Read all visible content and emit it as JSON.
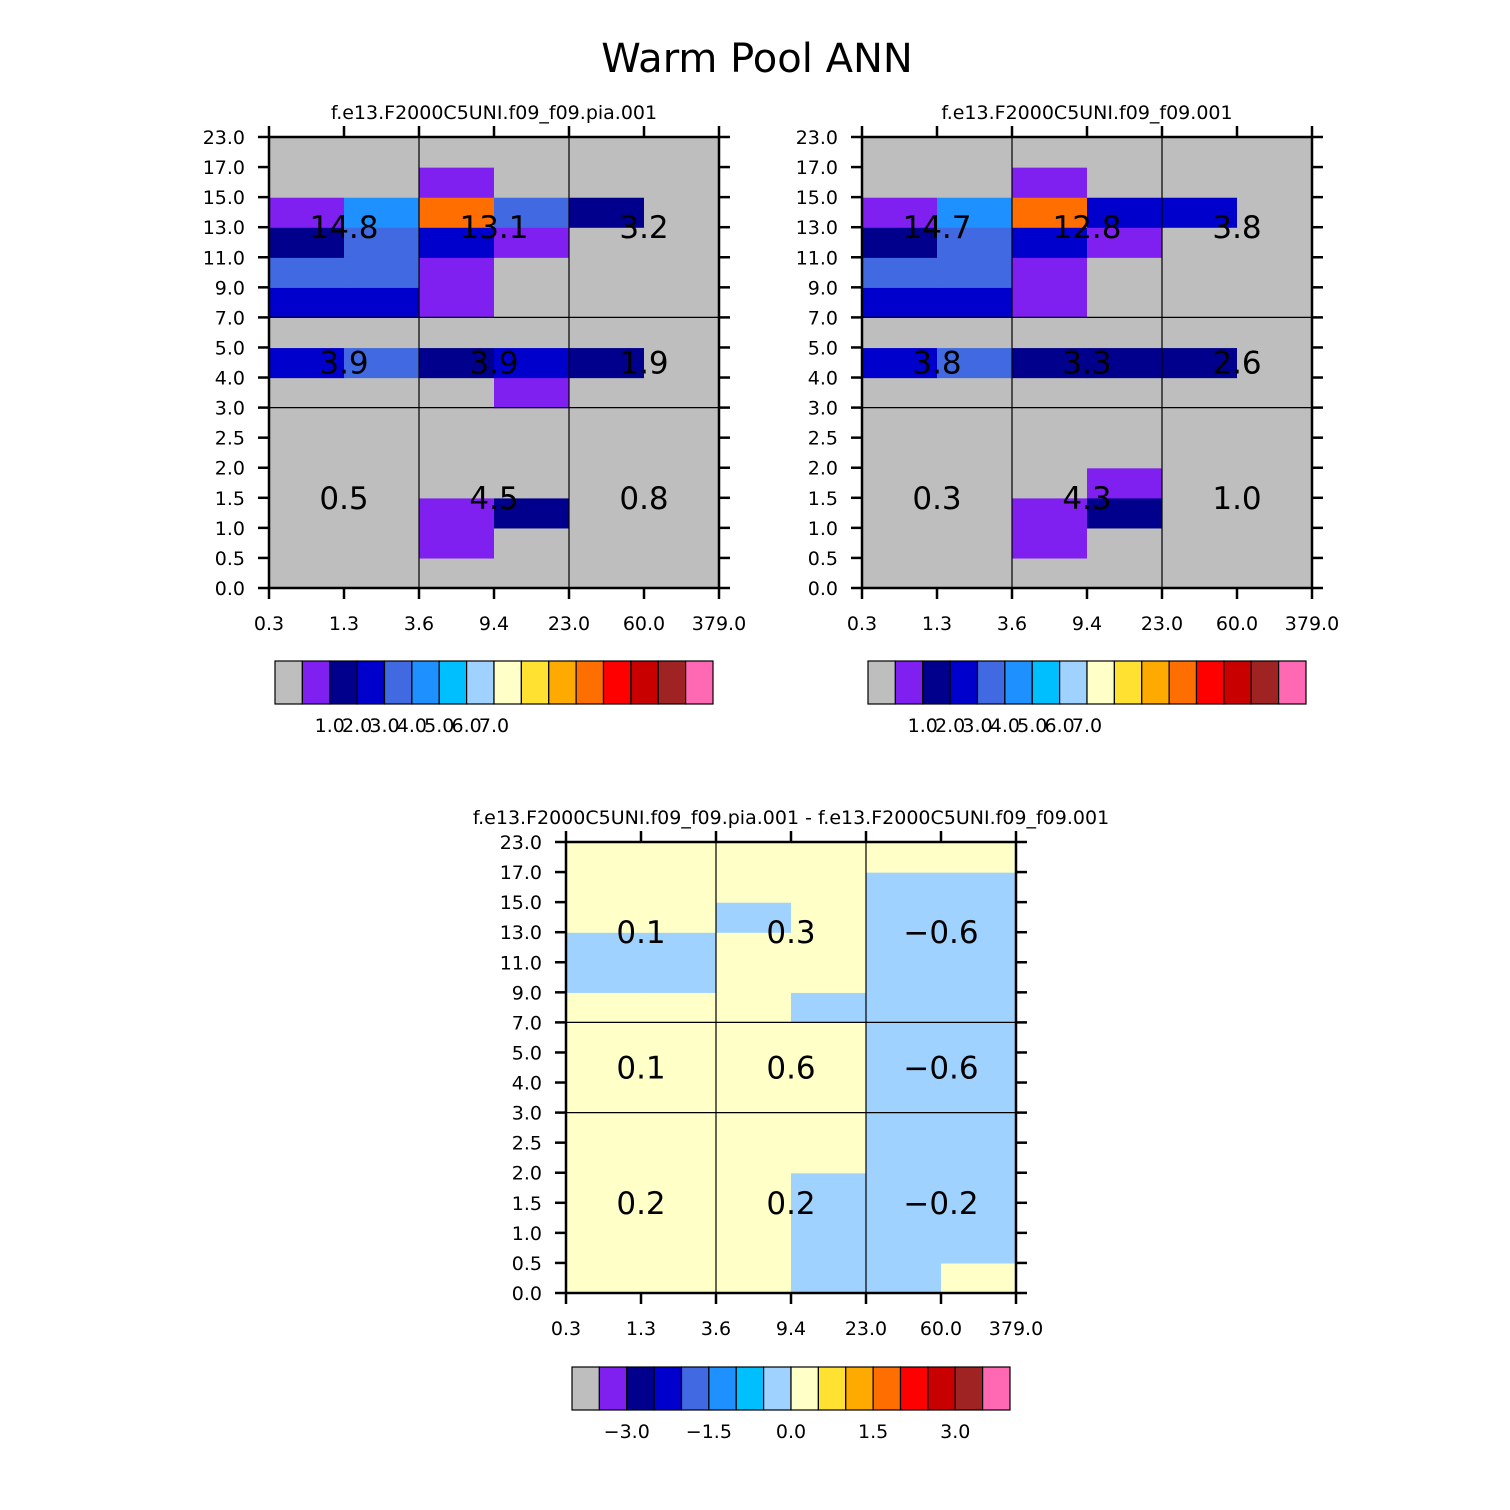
{
  "title": "Warm Pool ANN",
  "x_ticks": [
    "0.3",
    "1.3",
    "3.6",
    "9.4",
    "23.0",
    "60.0",
    "379.0"
  ],
  "y_ticks": [
    "0.0",
    "0.5",
    "1.0",
    "1.5",
    "2.0",
    "2.5",
    "3.0",
    "4.0",
    "5.0",
    "7.0",
    "9.0",
    "11.0",
    "13.0",
    "15.0",
    "17.0",
    "23.0"
  ],
  "colors": {
    "missing": "#bebebe",
    "box_fill_diff": "#ffffc8",
    "palette": [
      "#bebebe",
      "#8020f0",
      "#00008c",
      "#0000cd",
      "#4169e1",
      "#1e90ff",
      "#00bfff",
      "#a0d2ff",
      "#ffffc8",
      "#ffe132",
      "#ffaa00",
      "#ff6e00",
      "#ff0000",
      "#c80000",
      "#a02323",
      "#ff69b4"
    ]
  },
  "chart_data": [
    {
      "type": "heatmap",
      "title": "f.e13.F2000C5UNI.f09_f09.pia.001",
      "x_ticks": [
        "0.3",
        "1.3",
        "3.6",
        "9.4",
        "23.0",
        "60.0",
        "379.0"
      ],
      "y_ticks": [
        "0.0",
        "0.5",
        "1.0",
        "1.5",
        "2.0",
        "2.5",
        "3.0",
        "4.0",
        "5.0",
        "7.0",
        "9.0",
        "11.0",
        "13.0",
        "15.0",
        "17.0",
        "23.0"
      ],
      "cell_color_index": [
        [
          0,
          0,
          0,
          0,
          0,
          0
        ],
        [
          0,
          0,
          1,
          0,
          0,
          0
        ],
        [
          0,
          0,
          1,
          2,
          0,
          0
        ],
        [
          0,
          0,
          0,
          0,
          0,
          0
        ],
        [
          0,
          0,
          0,
          0,
          0,
          0
        ],
        [
          0,
          0,
          0,
          0,
          0,
          0
        ],
        [
          0,
          0,
          0,
          1,
          0,
          0
        ],
        [
          3,
          4,
          2,
          3,
          2,
          0
        ],
        [
          0,
          0,
          0,
          0,
          0,
          0
        ],
        [
          3,
          3,
          1,
          0,
          0,
          0
        ],
        [
          4,
          4,
          1,
          0,
          0,
          0
        ],
        [
          2,
          4,
          3,
          1,
          0,
          0
        ],
        [
          1,
          5,
          11,
          4,
          2,
          0
        ],
        [
          0,
          0,
          1,
          0,
          0,
          0
        ],
        [
          0,
          0,
          0,
          0,
          0,
          0
        ]
      ],
      "box_values": [
        [
          "0.5",
          "4.5",
          "0.8"
        ],
        [
          "3.9",
          "3.9",
          "1.9"
        ],
        [
          "14.8",
          "13.1",
          "3.2"
        ]
      ],
      "colorbar_labels": [
        "1.0",
        "2.0",
        "3.0",
        "4.0",
        "5.0",
        "6.0",
        "7.0"
      ]
    },
    {
      "type": "heatmap",
      "title": "f.e13.F2000C5UNI.f09_f09.001",
      "x_ticks": [
        "0.3",
        "1.3",
        "3.6",
        "9.4",
        "23.0",
        "60.0",
        "379.0"
      ],
      "y_ticks": [
        "0.0",
        "0.5",
        "1.0",
        "1.5",
        "2.0",
        "2.5",
        "3.0",
        "4.0",
        "5.0",
        "7.0",
        "9.0",
        "11.0",
        "13.0",
        "15.0",
        "17.0",
        "23.0"
      ],
      "cell_color_index": [
        [
          0,
          0,
          0,
          0,
          0,
          0
        ],
        [
          0,
          0,
          1,
          0,
          0,
          0
        ],
        [
          0,
          0,
          1,
          2,
          0,
          0
        ],
        [
          0,
          0,
          0,
          1,
          0,
          0
        ],
        [
          0,
          0,
          0,
          0,
          0,
          0
        ],
        [
          0,
          0,
          0,
          0,
          0,
          0
        ],
        [
          0,
          0,
          0,
          0,
          0,
          0
        ],
        [
          3,
          4,
          2,
          2,
          2,
          0
        ],
        [
          0,
          0,
          0,
          0,
          0,
          0
        ],
        [
          3,
          3,
          1,
          0,
          0,
          0
        ],
        [
          4,
          4,
          1,
          0,
          0,
          0
        ],
        [
          2,
          4,
          3,
          1,
          0,
          0
        ],
        [
          1,
          5,
          11,
          3,
          3,
          0
        ],
        [
          0,
          0,
          1,
          0,
          0,
          0
        ],
        [
          0,
          0,
          0,
          0,
          0,
          0
        ]
      ],
      "box_values": [
        [
          "0.3",
          "4.3",
          "1.0"
        ],
        [
          "3.8",
          "3.3",
          "2.6"
        ],
        [
          "14.7",
          "12.8",
          "3.8"
        ]
      ],
      "colorbar_labels": [
        "1.0",
        "2.0",
        "3.0",
        "4.0",
        "5.0",
        "6.0",
        "7.0"
      ]
    },
    {
      "type": "heatmap",
      "title": "f.e13.F2000C5UNI.f09_f09.pia.001 - f.e13.F2000C5UNI.f09_f09.001",
      "x_ticks": [
        "0.3",
        "1.3",
        "3.6",
        "9.4",
        "23.0",
        "60.0",
        "379.0"
      ],
      "y_ticks": [
        "0.0",
        "0.5",
        "1.0",
        "1.5",
        "2.0",
        "2.5",
        "3.0",
        "4.0",
        "5.0",
        "7.0",
        "9.0",
        "11.0",
        "13.0",
        "15.0",
        "17.0",
        "23.0"
      ],
      "cell_color_index": [
        [
          8,
          8,
          8,
          7,
          7,
          8
        ],
        [
          8,
          8,
          8,
          7,
          7,
          7
        ],
        [
          8,
          8,
          8,
          7,
          7,
          7
        ],
        [
          8,
          8,
          8,
          7,
          7,
          7
        ],
        [
          8,
          8,
          8,
          8,
          7,
          7
        ],
        [
          8,
          8,
          8,
          8,
          7,
          7
        ],
        [
          8,
          8,
          8,
          8,
          7,
          7
        ],
        [
          8,
          8,
          8,
          8,
          7,
          7
        ],
        [
          8,
          8,
          8,
          8,
          7,
          7
        ],
        [
          8,
          8,
          8,
          7,
          7,
          7
        ],
        [
          7,
          7,
          8,
          8,
          7,
          7
        ],
        [
          7,
          7,
          8,
          8,
          7,
          7
        ],
        [
          8,
          8,
          7,
          8,
          7,
          7
        ],
        [
          8,
          8,
          8,
          8,
          7,
          7
        ],
        [
          8,
          8,
          8,
          8,
          8,
          8
        ]
      ],
      "box_values": [
        [
          "0.2",
          "0.2",
          "-0.2"
        ],
        [
          "0.1",
          "0.6",
          "-0.6"
        ],
        [
          "0.1",
          "0.3",
          "-0.6"
        ]
      ],
      "colorbar_labels": [
        "-3.0",
        "-1.5",
        "0.0",
        "1.5",
        "3.0"
      ]
    }
  ]
}
